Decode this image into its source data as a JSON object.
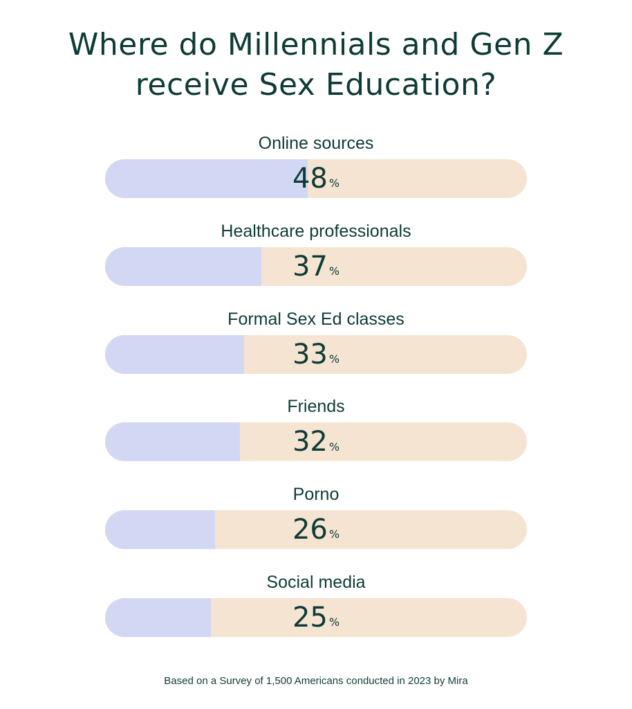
{
  "title_lines": [
    "Where do Millennials and Gen Z",
    "receive Sex Education?"
  ],
  "footnote": "Based on a Survey of 1,500 Americans conducted in 2023 by Mira",
  "colors": {
    "text": "#0e3b36",
    "filled": "#d2d7f4",
    "track": "#f5e4d2"
  },
  "chart_data": {
    "type": "bar",
    "title": "Where do Millennials and Gen Z receive Sex Education?",
    "unit": "%",
    "ylim": [
      0,
      100
    ],
    "categories": [
      "Online sources",
      "Healthcare professionals",
      "Formal Sex Ed classes",
      "Friends",
      "Porno",
      "Social media"
    ],
    "values": [
      48,
      37,
      33,
      32,
      26,
      25
    ]
  }
}
